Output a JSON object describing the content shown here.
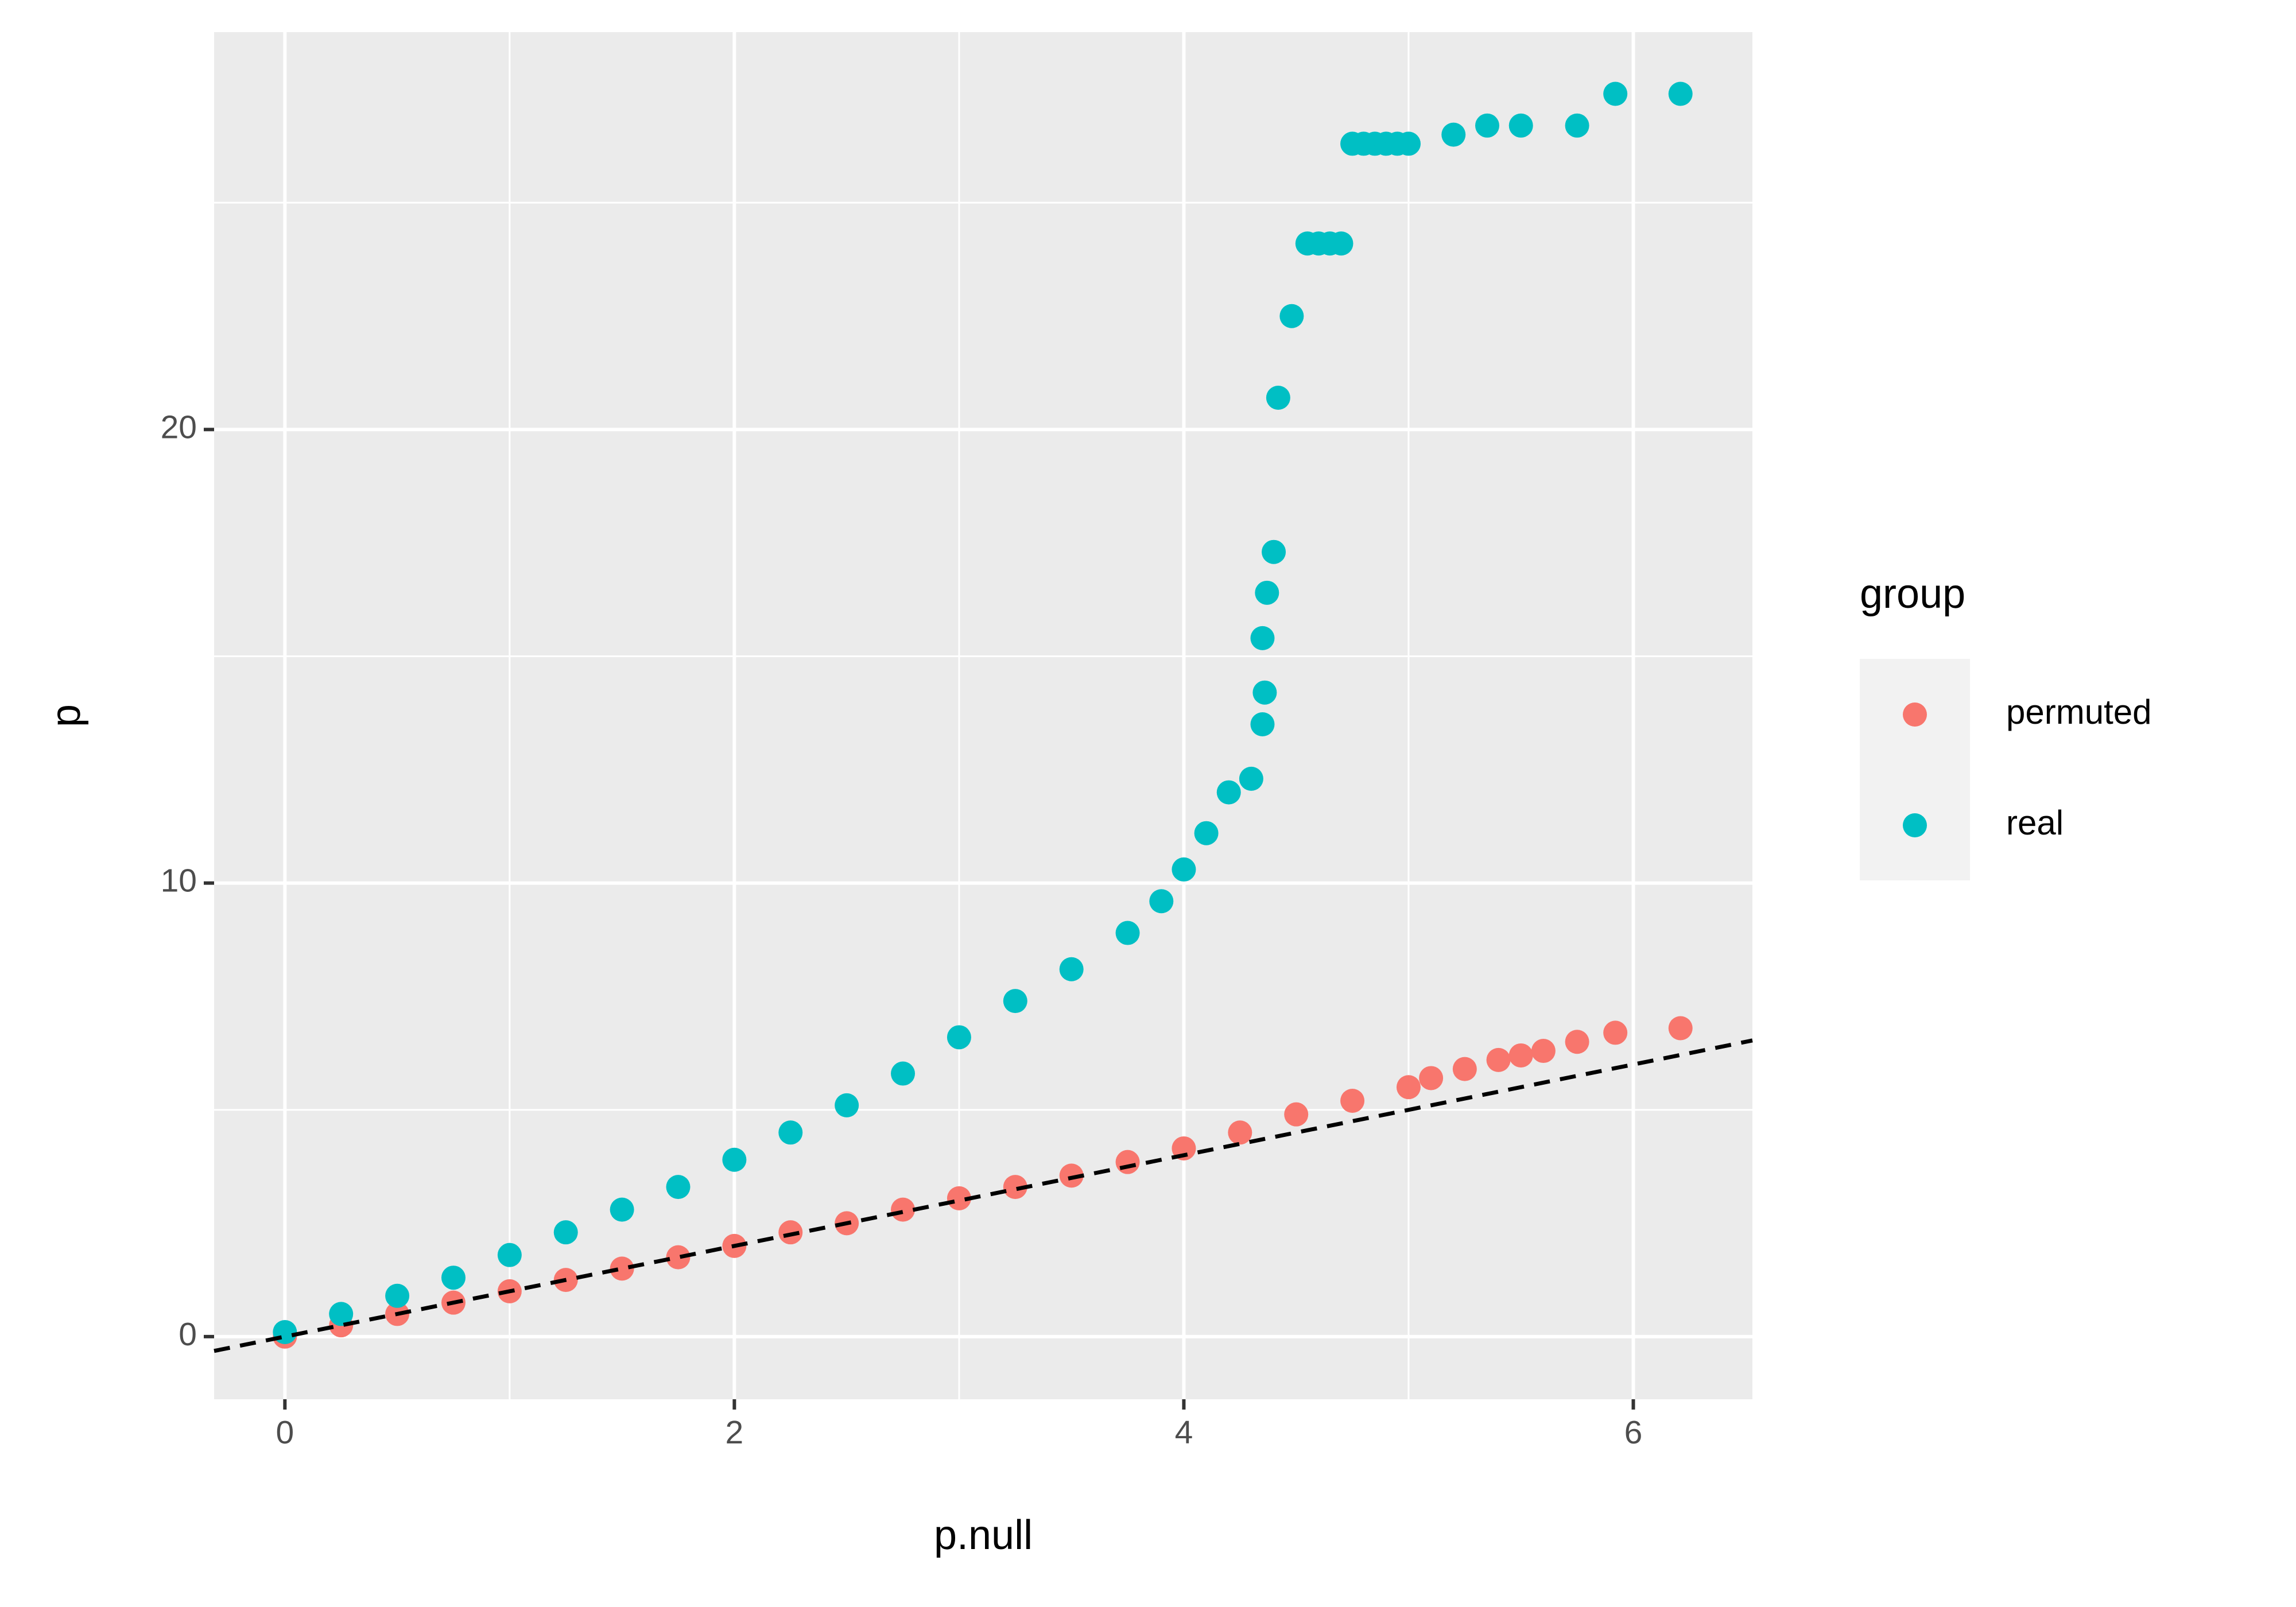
{
  "chart_data": {
    "type": "scatter",
    "x_label": "p.null",
    "y_label": "p",
    "xlim": [
      -0.315,
      6.53
    ],
    "ylim": [
      -1.38,
      28.76
    ],
    "xticks": [
      0,
      2,
      4,
      6
    ],
    "yticks": [
      0,
      10,
      20
    ],
    "minor_xticks": [
      1,
      3,
      5
    ],
    "minor_yticks": [
      5,
      15,
      25
    ],
    "grid": true,
    "legend_position": "right",
    "legend_title": "group",
    "reference_line": {
      "intercept": 0,
      "slope": 1,
      "color": "#000000",
      "dashed": true
    },
    "series": [
      {
        "name": "permuted",
        "color": "#F8766D",
        "x": [
          0,
          0.25,
          0.5,
          0.75,
          1,
          1.25,
          1.5,
          1.75,
          2,
          2.25,
          2.5,
          2.75,
          3,
          3.25,
          3.5,
          3.75,
          4,
          4.25,
          4.5,
          4.75,
          5,
          5.1,
          5.25,
          5.4,
          5.5,
          5.6,
          5.75,
          5.92,
          6.21
        ],
        "values": [
          0,
          0.25,
          0.5,
          0.75,
          1,
          1.25,
          1.5,
          1.75,
          2,
          2.3,
          2.5,
          2.8,
          3.05,
          3.3,
          3.55,
          3.85,
          4.15,
          4.5,
          4.9,
          5.2,
          5.5,
          5.7,
          5.9,
          6.1,
          6.2,
          6.3,
          6.5,
          6.7,
          6.8
        ]
      },
      {
        "name": "real",
        "color": "#00BFC4",
        "x": [
          0,
          0.25,
          0.5,
          0.75,
          1,
          1.25,
          1.5,
          1.75,
          2,
          2.25,
          2.5,
          2.75,
          3,
          3.25,
          3.5,
          3.75,
          3.9,
          4,
          4.1,
          4.2,
          4.3,
          4.35,
          4.36,
          4.35,
          4.37,
          4.4,
          4.42,
          4.48,
          4.55,
          4.6,
          4.65,
          4.7,
          4.75,
          4.8,
          4.85,
          4.9,
          4.95,
          5,
          5.2,
          5.35,
          5.5,
          5.75,
          5.92,
          6.21
        ],
        "values": [
          0.1,
          0.5,
          0.9,
          1.3,
          1.8,
          2.3,
          2.8,
          3.3,
          3.9,
          4.5,
          5.1,
          5.8,
          6.6,
          7.4,
          8.1,
          8.9,
          9.6,
          10.3,
          11.1,
          12,
          12.3,
          13.5,
          14.2,
          15.4,
          16.4,
          17.3,
          20.7,
          22.5,
          24.1,
          24.1,
          24.1,
          24.1,
          26.3,
          26.3,
          26.3,
          26.3,
          26.3,
          26.3,
          26.5,
          26.7,
          26.7,
          26.7,
          27.4,
          27.4
        ]
      }
    ]
  }
}
